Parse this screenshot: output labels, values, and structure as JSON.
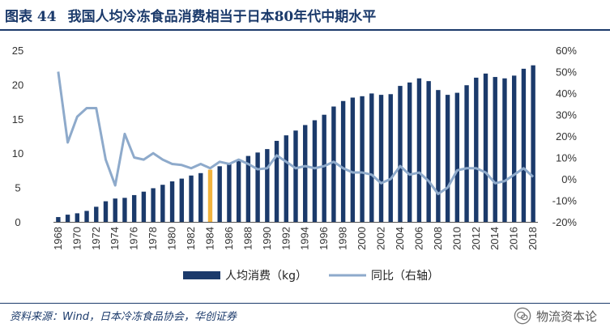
{
  "header": {
    "figure_no": "图表 44",
    "title": "我国人均冷冻食品消费相当于日本80年代中期水平"
  },
  "chart_data": {
    "type": "bar+line",
    "years": [
      1968,
      1969,
      1970,
      1971,
      1972,
      1973,
      1974,
      1975,
      1976,
      1977,
      1978,
      1979,
      1980,
      1981,
      1982,
      1983,
      1984,
      1985,
      1986,
      1987,
      1988,
      1989,
      1990,
      1991,
      1992,
      1993,
      1994,
      1995,
      1996,
      1997,
      1998,
      1999,
      2000,
      2001,
      2002,
      2003,
      2004,
      2005,
      2006,
      2007,
      2008,
      2009,
      2010,
      2011,
      2012,
      2013,
      2014,
      2015,
      2016,
      2017,
      2018
    ],
    "x_tick_labels": [
      "1968",
      "1970",
      "1972",
      "1974",
      "1976",
      "1978",
      "1980",
      "1982",
      "1984",
      "1986",
      "1988",
      "1990",
      "1992",
      "1994",
      "1996",
      "1998",
      "2000",
      "2002",
      "2004",
      "2006",
      "2008",
      "2010",
      "2012",
      "2014",
      "2016",
      "2018"
    ],
    "series": [
      {
        "name": "人均消费（kg）",
        "type": "bar",
        "axis": "left",
        "color": "#1b3a6b",
        "values": [
          0.7,
          1.05,
          1.25,
          1.6,
          2.2,
          3.0,
          3.4,
          3.5,
          3.9,
          4.4,
          4.9,
          5.4,
          5.9,
          6.3,
          6.75,
          7.1,
          7.6,
          8.1,
          8.6,
          9.1,
          9.6,
          10.1,
          10.6,
          11.8,
          12.6,
          13.3,
          14.1,
          14.8,
          15.6,
          16.8,
          17.6,
          18.1,
          18.3,
          18.7,
          18.5,
          18.6,
          19.8,
          20.3,
          20.9,
          20.5,
          19.2,
          18.5,
          18.8,
          19.9,
          21.0,
          21.6,
          21.1,
          20.9,
          21.3,
          22.3,
          22.8
        ]
      },
      {
        "name": "同比（右轴）",
        "type": "line",
        "axis": "right",
        "color": "#8eaacb",
        "values": [
          50,
          17,
          29,
          33,
          33,
          9,
          -3,
          21,
          10,
          9,
          12,
          9,
          7,
          6.5,
          5,
          7,
          5,
          8,
          7,
          9,
          7,
          4.5,
          5,
          11,
          8,
          5,
          6,
          5,
          6,
          8,
          5,
          3,
          3,
          2,
          -2,
          0,
          6,
          2,
          3,
          -1,
          -7,
          -4,
          4,
          5,
          5,
          3,
          -2,
          -1,
          2,
          5,
          1
        ]
      }
    ],
    "y_left": {
      "min": 0,
      "max": 25,
      "ticks": [
        "0",
        "5",
        "10",
        "15",
        "20",
        "25"
      ]
    },
    "y_right": {
      "min": -20,
      "max": 60,
      "ticks": [
        "-20%",
        "-10%",
        "0%",
        "10%",
        "20%",
        "30%",
        "40%",
        "50%",
        "60%"
      ]
    },
    "highlight": {
      "year": 1984,
      "color": "#f2b33d"
    },
    "legend": [
      {
        "label": "人均消费（kg）",
        "type": "bar",
        "color": "#1b3a6b"
      },
      {
        "label": "同比（右轴）",
        "type": "line",
        "color": "#8eaacb"
      }
    ]
  },
  "footer": {
    "source": "资料来源：Wind，日本冷冻食品协会，华创证券",
    "watermark": "物流资本论"
  }
}
